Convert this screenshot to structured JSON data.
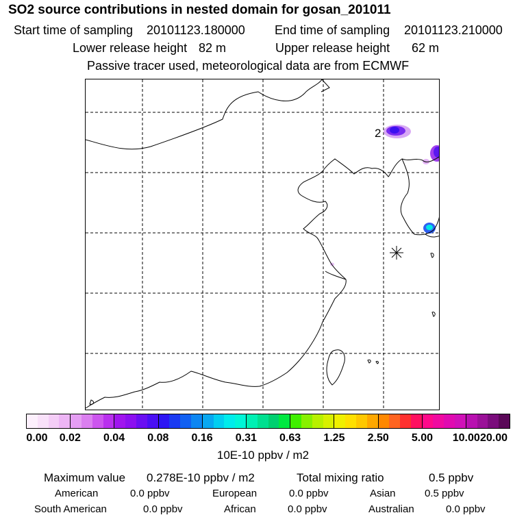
{
  "title": "SO2 source contributions in nested domain for gosan_201011",
  "sampling": {
    "start_label": "Start time of sampling",
    "start_value": "20101123.180000",
    "end_label": "End time of sampling",
    "end_value": "20101123.210000"
  },
  "release": {
    "lower_label": "Lower release height",
    "lower_value": "82 m",
    "upper_label": "Upper release height",
    "upper_value": "62 m"
  },
  "note": "Passive tracer used, meteorological data are from ECMWF",
  "map": {
    "marker_label": "2",
    "colors": {
      "border": "#000000",
      "grid": "#000000"
    }
  },
  "colorbar": {
    "tick_labels": [
      "0.00",
      "0.02",
      "0.04",
      "0.08",
      "0.16",
      "0.31",
      "0.63",
      "1.25",
      "2.50",
      "5.00",
      "10.00",
      "20.00"
    ],
    "colors": [
      "#fdf0fd",
      "#f9e1fa",
      "#f4cdf7",
      "#edb5f5",
      "#e59ef3",
      "#db7ff0",
      "#cc55ee",
      "#b930ee",
      "#a015ee",
      "#8c10f0",
      "#6a0ff2",
      "#4a10f4",
      "#2c15f4",
      "#1a3af2",
      "#1060f2",
      "#0c86f2",
      "#08a8f0",
      "#02cef0",
      "#00ecec",
      "#00f6d8",
      "#00f0b4",
      "#00e090",
      "#00d070",
      "#00e840",
      "#40f000",
      "#88f000",
      "#b8f000",
      "#d8f000",
      "#f0f000",
      "#ffe000",
      "#ffc800",
      "#ffa800",
      "#ff8800",
      "#ff6420",
      "#ff3030",
      "#ff1060",
      "#ff0a8a",
      "#f00aa0",
      "#e00ab0",
      "#d010b8",
      "#b810b0",
      "#9a1098",
      "#7a0c7c",
      "#5a0858"
    ],
    "unit": "10E-10 ppbv / m2"
  },
  "summary": {
    "max_label": "Maximum value",
    "max_value": "0.278E-10 ppbv / m2",
    "total_label": "Total mixing ratio",
    "total_value": "0.5 ppbv",
    "regions": [
      {
        "name": "American",
        "value": "0.0 ppbv"
      },
      {
        "name": "European",
        "value": "0.0 ppbv"
      },
      {
        "name": "Asian",
        "value": "0.5 ppbv"
      },
      {
        "name": "South American",
        "value": "0.0 ppbv"
      },
      {
        "name": "African",
        "value": "0.0 ppbv"
      },
      {
        "name": "Australian",
        "value": "0.0 ppbv"
      }
    ]
  }
}
